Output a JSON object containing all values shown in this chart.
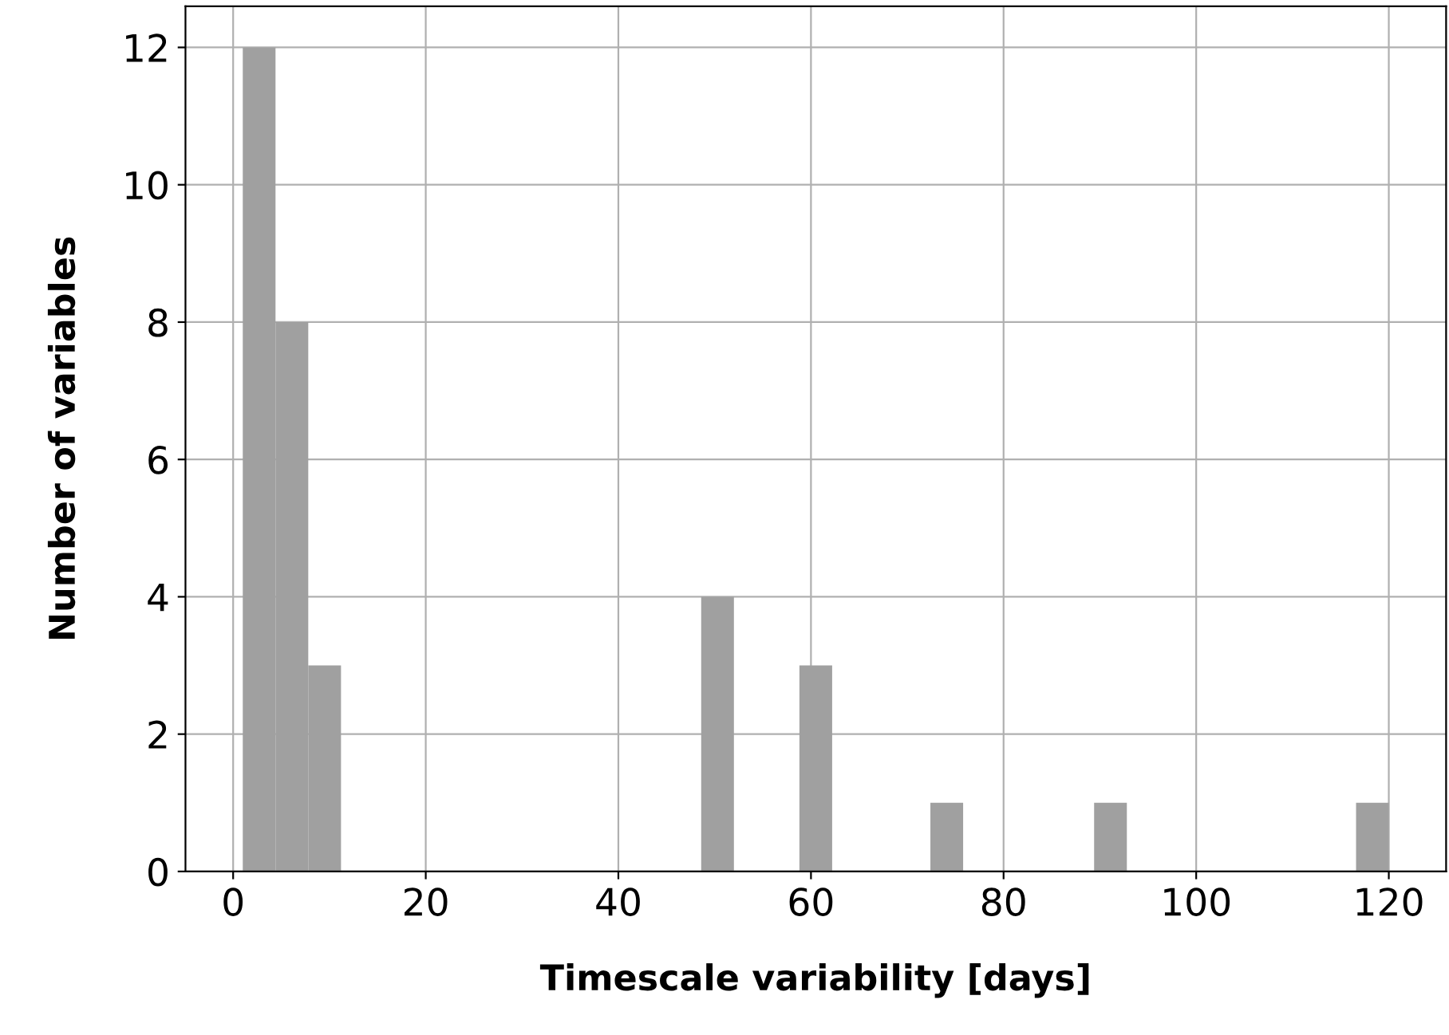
{
  "chart_data": {
    "type": "histogram",
    "xlabel": "Timescale variability [days]",
    "ylabel": "Number of variables",
    "bins": [
      1.0,
      4.4,
      7.8,
      11.2,
      14.6,
      18.0,
      21.4,
      24.8,
      28.2,
      31.6,
      35.0,
      38.4,
      41.8,
      45.2,
      48.6,
      52.0,
      55.4,
      58.8,
      62.2,
      65.6,
      69.0,
      72.4,
      75.8,
      79.2,
      82.6,
      86.0,
      89.4,
      92.8,
      96.2,
      99.6,
      103.0,
      106.4,
      109.8,
      113.2,
      116.6,
      120.0
    ],
    "values": [
      12,
      8,
      3,
      0,
      0,
      0,
      0,
      0,
      0,
      0,
      0,
      0,
      0,
      0,
      4,
      0,
      0,
      3,
      0,
      0,
      0,
      1,
      0,
      0,
      0,
      0,
      1,
      0,
      0,
      0,
      0,
      0,
      0,
      0,
      1
    ],
    "color": "#a0a0a0",
    "xlim": [
      -4.95,
      125.95
    ],
    "xticks": [
      0,
      20,
      40,
      60,
      80,
      100,
      120
    ],
    "ylim": [
      0,
      12.6
    ],
    "yticks": [
      0,
      2,
      4,
      6,
      8,
      10,
      12
    ],
    "grid": true
  }
}
